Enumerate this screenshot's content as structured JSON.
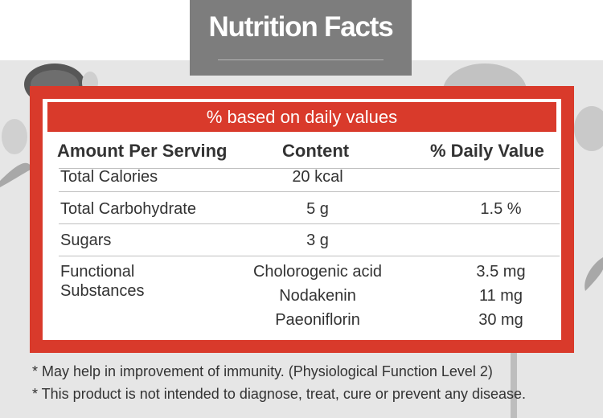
{
  "title": "Nutrition Facts",
  "table": {
    "header": "% based on daily values",
    "columns": [
      "Amount Per Serving",
      "Content",
      "% Daily Value"
    ],
    "rows": [
      {
        "name": "Total Calories",
        "content": "20 kcal",
        "daily_value": ""
      },
      {
        "name": "Total Carbohydrate",
        "content": "5 g",
        "daily_value": "1.5 %"
      },
      {
        "name": "Sugars",
        "content": "3 g",
        "daily_value": ""
      }
    ],
    "functional": {
      "name_line1": "Functional",
      "name_line2": "Substances",
      "items": [
        {
          "content": "Cholorogenic acid",
          "daily_value": "3.5 mg"
        },
        {
          "content": "Nodakenin",
          "daily_value": "11 mg"
        },
        {
          "content": "Paeoniflorin",
          "daily_value": "30 mg"
        }
      ]
    }
  },
  "footnotes": [
    "* May help in improvement of immunity. (Physiological Function Level 2)",
    "* This product is not intended to diagnose, treat, cure or prevent any disease."
  ],
  "colors": {
    "accent_red": "#d93a2b",
    "title_gray": "#7d7d7d",
    "background_gray": "#e6e6e6",
    "text": "#333333"
  }
}
